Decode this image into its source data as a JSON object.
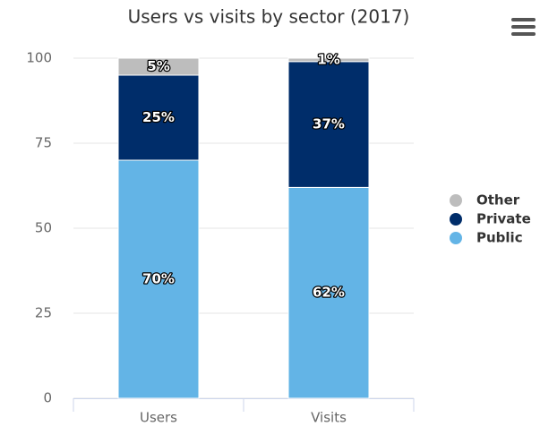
{
  "chart_data": {
    "type": "stacked_bar",
    "title": "Users vs visits by sector (2017)",
    "categories": [
      "Users",
      "Visits"
    ],
    "series": [
      {
        "name": "Public",
        "color": "#63b4e6",
        "values": [
          70,
          62
        ],
        "value_labels": [
          "70%",
          "62%"
        ]
      },
      {
        "name": "Private",
        "color": "#002d6a",
        "values": [
          25,
          37
        ],
        "value_labels": [
          "25%",
          "37%"
        ]
      },
      {
        "name": "Other",
        "color": "#bdbdbd",
        "values": [
          5,
          1
        ],
        "value_labels": [
          "5%",
          "1%"
        ]
      }
    ],
    "ylim": [
      0,
      100
    ],
    "yticks": [
      0,
      25,
      50,
      75,
      100
    ],
    "grid": true,
    "legend_position": "right"
  }
}
